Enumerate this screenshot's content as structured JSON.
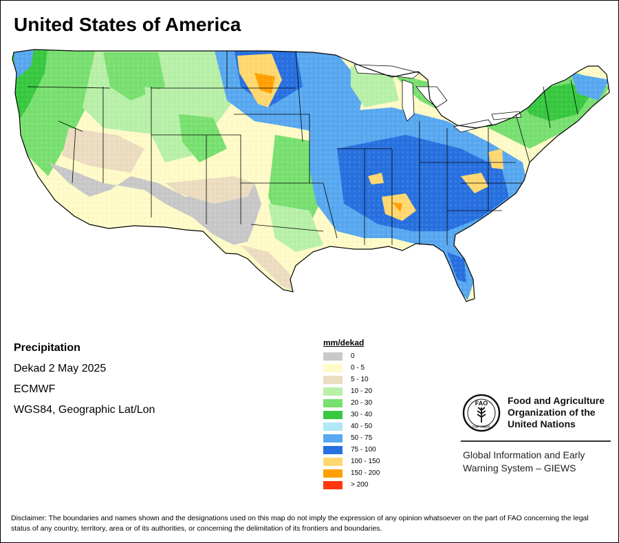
{
  "title": "United States of America",
  "map": {
    "variable": "Precipitation",
    "period": "Dekad 2 May 2025",
    "source": "ECMWF",
    "projection": "WGS84, Geographic Lat/Lon"
  },
  "legend": {
    "title": "mm/dekad",
    "items": [
      {
        "label": "0",
        "color": "#c8c8c8"
      },
      {
        "label": "0 - 5",
        "color": "#fffbc8"
      },
      {
        "label": "5 - 10",
        "color": "#ecdcc0"
      },
      {
        "label": "10 - 20",
        "color": "#b8f0a8"
      },
      {
        "label": "20 - 30",
        "color": "#78e070"
      },
      {
        "label": "30 - 40",
        "color": "#38c840"
      },
      {
        "label": "40 - 50",
        "color": "#b0e8f8"
      },
      {
        "label": "50 - 75",
        "color": "#58a8f0"
      },
      {
        "label": "75 - 100",
        "color": "#2870e0"
      },
      {
        "label": "100 - 150",
        "color": "#ffd870"
      },
      {
        "label": "150 - 200",
        "color": "#ffa000"
      },
      {
        "label": "> 200",
        "color": "#ff3810"
      }
    ]
  },
  "org": {
    "name": "Food and Agriculture Organization of the United Nations",
    "name_lines": [
      "Food and Agriculture",
      "Organization of the",
      "United Nations"
    ],
    "logo_letters": "FAO",
    "motto": "FIAT PANIS",
    "system_lines": [
      "Global Information and Early",
      "Warning System – GIEWS"
    ]
  },
  "disclaimer": "Disclaimer: The boundaries and names shown and the designations used on this map do not imply the expression of any opinion whatsoever on the part of FAO concerning the legal status of any country, territory, area or of its authorities, or concerning the delimitation of its frontiers and boundaries."
}
